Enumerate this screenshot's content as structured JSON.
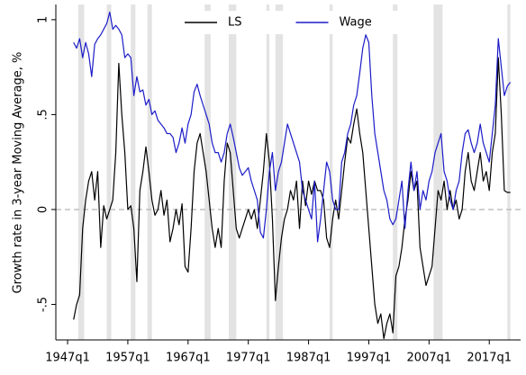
{
  "chart_data": {
    "type": "line",
    "y_label": "Growth rate in 3-year Moving Average, %",
    "x": [
      1948.0,
      1948.5,
      1949.0,
      1949.5,
      1950.0,
      1950.5,
      1951.0,
      1951.5,
      1952.0,
      1952.5,
      1953.0,
      1953.5,
      1954.0,
      1954.5,
      1955.0,
      1955.5,
      1956.0,
      1956.5,
      1957.0,
      1957.5,
      1958.0,
      1958.5,
      1959.0,
      1959.5,
      1960.0,
      1960.5,
      1961.0,
      1961.5,
      1962.0,
      1962.5,
      1963.0,
      1963.5,
      1964.0,
      1964.5,
      1965.0,
      1965.5,
      1966.0,
      1966.5,
      1967.0,
      1967.5,
      1968.0,
      1968.5,
      1969.0,
      1969.5,
      1970.0,
      1970.5,
      1971.0,
      1971.5,
      1972.0,
      1972.5,
      1973.0,
      1973.5,
      1974.0,
      1974.5,
      1975.0,
      1975.5,
      1976.0,
      1976.5,
      1977.0,
      1977.5,
      1978.0,
      1978.5,
      1979.0,
      1979.5,
      1980.0,
      1980.5,
      1981.0,
      1981.5,
      1982.0,
      1982.5,
      1983.0,
      1983.5,
      1984.0,
      1984.5,
      1985.0,
      1985.5,
      1986.0,
      1986.5,
      1987.0,
      1987.5,
      1988.0,
      1988.5,
      1989.0,
      1989.5,
      1990.0,
      1990.5,
      1991.0,
      1991.5,
      1992.0,
      1992.5,
      1993.0,
      1993.5,
      1994.0,
      1994.5,
      1995.0,
      1995.5,
      1996.0,
      1996.5,
      1997.0,
      1997.5,
      1998.0,
      1998.5,
      1999.0,
      1999.5,
      2000.0,
      2000.5,
      2001.0,
      2001.5,
      2002.0,
      2002.5,
      2003.0,
      2003.5,
      2004.0,
      2004.5,
      2005.0,
      2005.5,
      2006.0,
      2006.5,
      2007.0,
      2007.5,
      2008.0,
      2008.5,
      2009.0,
      2009.5,
      2010.0,
      2010.5,
      2011.0,
      2011.5,
      2012.0,
      2012.5,
      2013.0,
      2013.5,
      2014.0,
      2014.5,
      2015.0,
      2015.5,
      2016.0,
      2016.5,
      2017.0,
      2017.5,
      2018.0,
      2018.5,
      2019.0,
      2019.5,
      2020.0,
      2020.5
    ],
    "series": [
      {
        "name": "LS",
        "color": "#000000",
        "values": [
          -0.58,
          -0.5,
          -0.45,
          -0.1,
          0.05,
          0.15,
          0.2,
          0.05,
          0.2,
          -0.2,
          0.02,
          -0.05,
          0.0,
          0.05,
          0.3,
          0.77,
          0.5,
          0.3,
          0.0,
          0.02,
          -0.1,
          -0.38,
          0.1,
          0.2,
          0.33,
          0.2,
          0.05,
          -0.03,
          0.0,
          0.1,
          -0.03,
          0.05,
          -0.17,
          -0.1,
          0.0,
          -0.08,
          0.03,
          -0.3,
          -0.33,
          -0.1,
          0.2,
          0.35,
          0.4,
          0.3,
          0.2,
          0.05,
          -0.1,
          -0.2,
          -0.1,
          -0.2,
          0.15,
          0.35,
          0.3,
          0.1,
          -0.1,
          -0.15,
          -0.1,
          -0.05,
          0.0,
          -0.05,
          0.0,
          -0.1,
          0.05,
          0.2,
          0.4,
          0.25,
          -0.05,
          -0.48,
          -0.3,
          -0.15,
          -0.05,
          0.0,
          0.1,
          0.05,
          0.15,
          -0.1,
          0.15,
          0.02,
          0.15,
          0.08,
          0.15,
          0.1,
          0.1,
          0.05,
          -0.15,
          -0.2,
          -0.05,
          0.05,
          -0.05,
          0.1,
          0.25,
          0.38,
          0.35,
          0.45,
          0.53,
          0.4,
          0.3,
          0.1,
          -0.1,
          -0.3,
          -0.5,
          -0.6,
          -0.55,
          -0.68,
          -0.6,
          -0.55,
          -0.65,
          -0.35,
          -0.3,
          -0.2,
          -0.05,
          0.05,
          0.2,
          0.1,
          0.15,
          -0.2,
          -0.3,
          -0.4,
          -0.35,
          -0.3,
          -0.1,
          0.1,
          0.05,
          0.15,
          0.0,
          0.1,
          0.0,
          0.05,
          -0.05,
          0.0,
          0.2,
          0.3,
          0.15,
          0.1,
          0.2,
          0.3,
          0.15,
          0.2,
          0.1,
          0.3,
          0.4,
          0.8,
          0.5,
          0.1,
          0.09,
          0.09
        ]
      },
      {
        "name": "Wage",
        "color": "#1c1cc8",
        "values": [
          0.88,
          0.85,
          0.9,
          0.8,
          0.88,
          0.82,
          0.7,
          0.87,
          0.9,
          0.92,
          0.95,
          0.98,
          1.04,
          0.95,
          0.97,
          0.95,
          0.92,
          0.8,
          0.82,
          0.8,
          0.6,
          0.7,
          0.62,
          0.63,
          0.55,
          0.58,
          0.5,
          0.52,
          0.47,
          0.45,
          0.43,
          0.4,
          0.4,
          0.38,
          0.3,
          0.35,
          0.43,
          0.35,
          0.45,
          0.5,
          0.62,
          0.66,
          0.6,
          0.55,
          0.5,
          0.45,
          0.35,
          0.3,
          0.3,
          0.25,
          0.3,
          0.4,
          0.45,
          0.38,
          0.3,
          0.22,
          0.18,
          0.2,
          0.22,
          0.15,
          0.1,
          0.05,
          -0.12,
          -0.15,
          0.0,
          0.2,
          0.3,
          0.1,
          0.2,
          0.25,
          0.35,
          0.45,
          0.4,
          0.35,
          0.3,
          0.25,
          0.1,
          0.05,
          0.0,
          -0.05,
          0.15,
          -0.17,
          -0.05,
          0.1,
          0.25,
          0.2,
          0.05,
          0.0,
          0.0,
          0.25,
          0.3,
          0.4,
          0.45,
          0.55,
          0.6,
          0.72,
          0.85,
          0.92,
          0.88,
          0.6,
          0.4,
          0.3,
          0.2,
          0.1,
          0.05,
          -0.05,
          -0.08,
          -0.05,
          0.05,
          0.15,
          -0.1,
          0.1,
          0.25,
          0.1,
          0.2,
          0.0,
          0.1,
          0.05,
          0.15,
          0.2,
          0.3,
          0.35,
          0.4,
          0.2,
          0.15,
          0.05,
          0.0,
          0.1,
          0.15,
          0.3,
          0.4,
          0.42,
          0.35,
          0.3,
          0.35,
          0.45,
          0.35,
          0.3,
          0.25,
          0.4,
          0.55,
          0.9,
          0.75,
          0.6,
          0.65,
          0.67
        ]
      }
    ],
    "shaded_periods": [
      [
        1948.75,
        1949.75
      ],
      [
        1953.5,
        1954.25
      ],
      [
        1957.5,
        1958.25
      ],
      [
        1960.25,
        1961.0
      ],
      [
        1969.75,
        1970.75
      ],
      [
        1973.75,
        1975.0
      ],
      [
        1980.0,
        1980.5
      ],
      [
        1981.5,
        1982.75
      ],
      [
        1990.5,
        1991.0
      ],
      [
        2001.0,
        2001.75
      ],
      [
        2007.75,
        2009.25
      ],
      [
        2020.0,
        2020.5
      ]
    ],
    "shade_color": "#e3e3e3",
    "reference_line": 0,
    "xlim": [
      1945.05,
      2022.2
    ],
    "ylim": [
      -0.687,
      1.08
    ],
    "xticks": [
      {
        "value": 1947,
        "label": "1947q1"
      },
      {
        "value": 1957,
        "label": "1957q1"
      },
      {
        "value": 1967,
        "label": "1967q1"
      },
      {
        "value": 1977,
        "label": "1977q1"
      },
      {
        "value": 1987,
        "label": "1987q1"
      },
      {
        "value": 1997,
        "label": "1997q1"
      },
      {
        "value": 2007,
        "label": "2007q1"
      },
      {
        "value": 2017,
        "label": "2017q1"
      }
    ],
    "yticks": [
      {
        "value": -0.5,
        "label": "-.5"
      },
      0,
      {
        "value": 0.5,
        "label": ".5"
      },
      1
    ],
    "legend": "top"
  }
}
